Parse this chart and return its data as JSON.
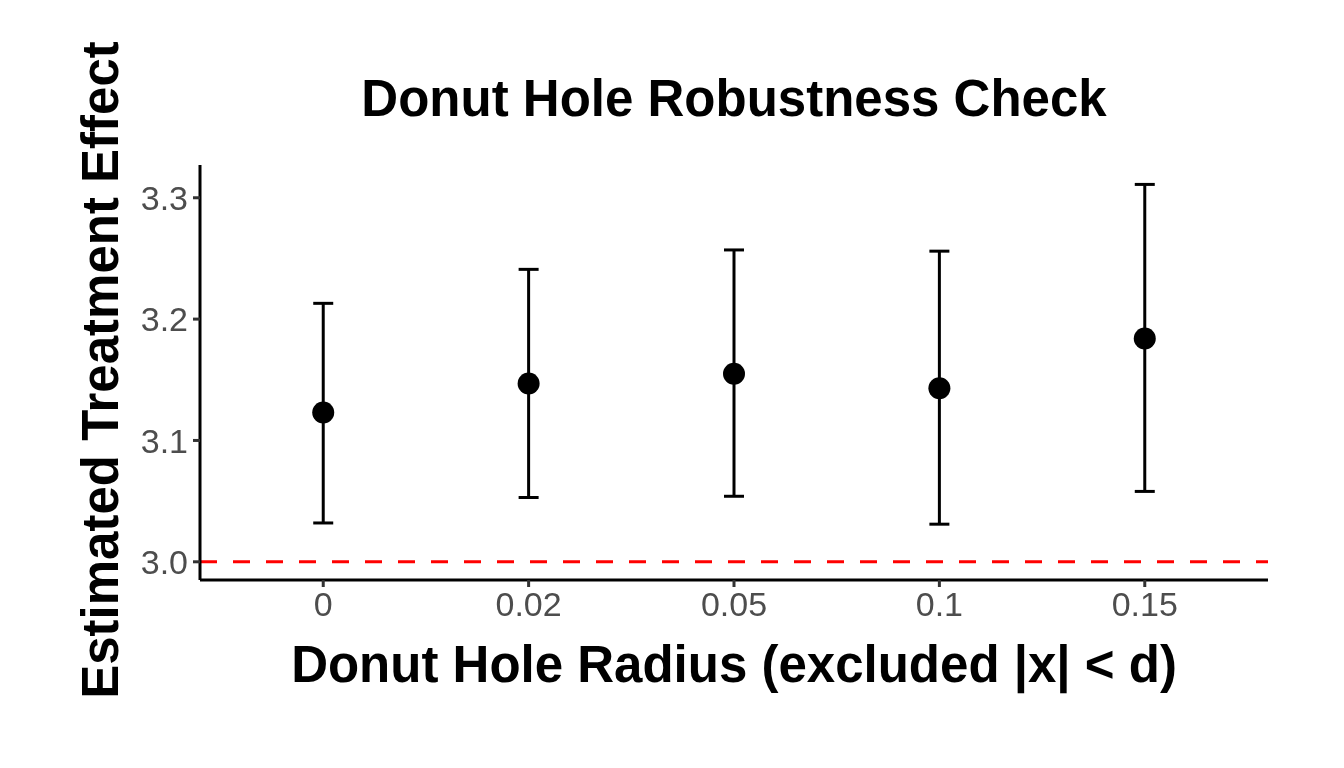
{
  "chart_data": {
    "type": "scatter",
    "title": "Donut Hole Robustness Check",
    "xlabel": "Donut Hole Radius (excluded |x| < d)",
    "ylabel": "Estimated Treatment Effect",
    "categories": [
      "0",
      "0.02",
      "0.05",
      "0.1",
      "0.15"
    ],
    "values": [
      3.123,
      3.147,
      3.155,
      3.143,
      3.184
    ],
    "errors": [
      [
        3.032,
        3.213
      ],
      [
        3.053,
        3.241
      ],
      [
        3.054,
        3.257
      ],
      [
        3.031,
        3.256
      ],
      [
        3.058,
        3.311
      ]
    ],
    "color": "#000000",
    "marker": "circle",
    "ylim": [
      2.985,
      3.327
    ],
    "yticks": [
      {
        "value": 3,
        "label": "3.0"
      },
      {
        "value": 3.1,
        "label": "3.1"
      },
      {
        "value": 3.2,
        "label": "3.2"
      },
      {
        "value": 3.3,
        "label": "3.3"
      }
    ],
    "ref_lines": [
      {
        "axis": "y",
        "value": 3,
        "color": "#ff0000",
        "line_style": "dashed"
      }
    ]
  }
}
